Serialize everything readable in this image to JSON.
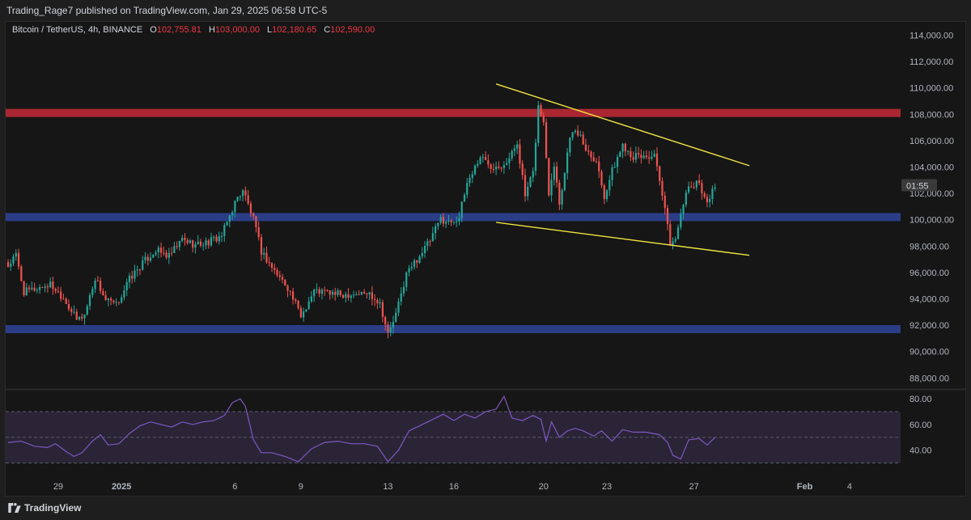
{
  "header": {
    "publisher": "Trading_Rage7 published on TradingView.com, Jan 29, 2025 06:58 UTC-5"
  },
  "legend": {
    "symbol": "Bitcoin / TetherUS, 4h, BINANCE",
    "open_label": "O",
    "open": "102,755.81",
    "high_label": "H",
    "high": "103,000.00",
    "low_label": "L",
    "low": "102,180.65",
    "close_label": "C",
    "close": "102,590.00"
  },
  "footer": {
    "brand": "TradingView",
    "logo_icon": "tradingview-logo-icon"
  },
  "colors": {
    "up": "#26a69a",
    "down": "#ef5350",
    "resistance": "#b22833",
    "support": "#2b3f8c",
    "trendline": "#f0e442",
    "rsi": "#7e57c2",
    "rsi_band": "#2a2436",
    "text": "#b2b5be"
  },
  "chart_data": [
    {
      "type": "candlestick",
      "title": "Bitcoin / TetherUS, 4h, BINANCE",
      "timeframe": "4h",
      "x_ticks": [
        {
          "label": "29",
          "bar": 19
        },
        {
          "label": "2025",
          "bar": 43
        },
        {
          "label": "6",
          "bar": 86
        },
        {
          "label": "9",
          "bar": 111
        },
        {
          "label": "13",
          "bar": 144
        },
        {
          "label": "16",
          "bar": 169
        },
        {
          "label": "20",
          "bar": 203
        },
        {
          "label": "23",
          "bar": 227
        },
        {
          "label": "27",
          "bar": 260
        },
        {
          "label": "Feb",
          "bar": 302
        },
        {
          "label": "4",
          "bar": 319
        }
      ],
      "y_ticks": [
        "114,000.00",
        "112,000.00",
        "110,000.00",
        "108,000.00",
        "106,000.00",
        "104,000.00",
        "102,000.00",
        "100,000.00",
        "98,000.00",
        "96,000.00",
        "94,000.00",
        "92,000.00",
        "90,000.00",
        "88,000.00"
      ],
      "y_tick_values": [
        114000,
        112000,
        110000,
        108000,
        106000,
        104000,
        102000,
        100000,
        98000,
        96000,
        94000,
        92000,
        90000,
        88000
      ],
      "ylim": [
        87000,
        115000
      ],
      "price_tag": {
        "value": 102590,
        "text": "01:55"
      },
      "horizontal_zones": [
        {
          "role": "resistance",
          "value": 108100
        },
        {
          "role": "support",
          "value": 100200
        },
        {
          "role": "support",
          "value": 91700
        }
      ],
      "trendlines": [
        {
          "from": {
            "bar": 185,
            "price": 110300
          },
          "to": {
            "bar": 281,
            "price": 104100
          }
        },
        {
          "from": {
            "bar": 185,
            "price": 99800
          },
          "to": {
            "bar": 281,
            "price": 97300
          }
        }
      ],
      "anchors": [
        [
          0,
          96500
        ],
        [
          3,
          97300
        ],
        [
          6,
          94500
        ],
        [
          11,
          94800
        ],
        [
          16,
          95100
        ],
        [
          21,
          94100
        ],
        [
          26,
          92400
        ],
        [
          29,
          92800
        ],
        [
          33,
          95600
        ],
        [
          37,
          93900
        ],
        [
          41,
          93500
        ],
        [
          46,
          95500
        ],
        [
          51,
          96700
        ],
        [
          56,
          97700
        ],
        [
          61,
          97200
        ],
        [
          66,
          98500
        ],
        [
          71,
          98100
        ],
        [
          76,
          98300
        ],
        [
          81,
          98800
        ],
        [
          86,
          101300
        ],
        [
          89,
          102300
        ],
        [
          93,
          100000
        ],
        [
          96,
          97600
        ],
        [
          101,
          96100
        ],
        [
          106,
          94900
        ],
        [
          111,
          92700
        ],
        [
          116,
          94600
        ],
        [
          121,
          94500
        ],
        [
          126,
          94300
        ],
        [
          131,
          94400
        ],
        [
          137,
          94400
        ],
        [
          141,
          93700
        ],
        [
          144,
          91300
        ],
        [
          147,
          92800
        ],
        [
          151,
          95900
        ],
        [
          156,
          97300
        ],
        [
          160,
          98400
        ],
        [
          164,
          100100
        ],
        [
          167,
          99800
        ],
        [
          171,
          100200
        ],
        [
          174,
          102800
        ],
        [
          179,
          104800
        ],
        [
          183,
          104100
        ],
        [
          187,
          104200
        ],
        [
          190,
          104600
        ],
        [
          193,
          105900
        ],
        [
          196,
          101800
        ],
        [
          199,
          103500
        ],
        [
          201,
          108600
        ],
        [
          203,
          107300
        ],
        [
          205,
          102100
        ],
        [
          207,
          104300
        ],
        [
          209,
          101300
        ],
        [
          211,
          103600
        ],
        [
          213,
          106500
        ],
        [
          216,
          106600
        ],
        [
          219,
          105400
        ],
        [
          223,
          104500
        ],
        [
          226,
          101800
        ],
        [
          229,
          103700
        ],
        [
          233,
          105700
        ],
        [
          237,
          104800
        ],
        [
          241,
          104800
        ],
        [
          245,
          104800
        ],
        [
          248,
          101800
        ],
        [
          251,
          98300
        ],
        [
          253,
          98400
        ],
        [
          255,
          100700
        ],
        [
          258,
          102400
        ],
        [
          262,
          102800
        ],
        [
          265,
          101300
        ],
        [
          268,
          102590
        ]
      ],
      "notes": "Candles are generated by interpolating between anchor closes (bar index, price)."
    },
    {
      "type": "line",
      "title": "",
      "y_ticks": [
        "80.00",
        "60.00",
        "40.00"
      ],
      "y_tick_values": [
        80,
        60,
        40
      ],
      "ylim": [
        30,
        83
      ],
      "band": [
        30,
        70
      ],
      "midline": 50,
      "series": [
        {
          "values": [
            [
              0,
              46
            ],
            [
              5,
              47
            ],
            [
              10,
              43
            ],
            [
              15,
              42
            ],
            [
              18,
              45
            ],
            [
              22,
              39
            ],
            [
              25,
              35
            ],
            [
              28,
              38
            ],
            [
              32,
              47
            ],
            [
              35,
              52
            ],
            [
              38,
              44
            ],
            [
              42,
              45
            ],
            [
              46,
              53
            ],
            [
              50,
              59
            ],
            [
              54,
              62
            ],
            [
              58,
              60
            ],
            [
              62,
              58
            ],
            [
              66,
              62
            ],
            [
              70,
              60
            ],
            [
              74,
              62
            ],
            [
              78,
              63
            ],
            [
              82,
              67
            ],
            [
              85,
              77
            ],
            [
              88,
              80
            ],
            [
              90,
              74
            ],
            [
              93,
              48
            ],
            [
              96,
              38
            ],
            [
              100,
              38
            ],
            [
              105,
              35
            ],
            [
              110,
              31
            ],
            [
              115,
              41
            ],
            [
              120,
              46
            ],
            [
              125,
              47
            ],
            [
              130,
              45
            ],
            [
              135,
              45
            ],
            [
              140,
              43
            ],
            [
              144,
              31
            ],
            [
              148,
              40
            ],
            [
              152,
              55
            ],
            [
              157,
              60
            ],
            [
              161,
              64
            ],
            [
              165,
              68
            ],
            [
              169,
              63
            ],
            [
              173,
              68
            ],
            [
              177,
              65
            ],
            [
              181,
              70
            ],
            [
              185,
              72
            ],
            [
              188,
              82
            ],
            [
              191,
              65
            ],
            [
              195,
              63
            ],
            [
              199,
              67
            ],
            [
              202,
              64
            ],
            [
              204,
              47
            ],
            [
              206,
              62
            ],
            [
              209,
              50
            ],
            [
              212,
              55
            ],
            [
              215,
              57
            ],
            [
              218,
              55
            ],
            [
              222,
              51
            ],
            [
              225,
              55
            ],
            [
              229,
              47
            ],
            [
              233,
              56
            ],
            [
              237,
              54
            ],
            [
              242,
              54
            ],
            [
              247,
              52
            ],
            [
              250,
              46
            ],
            [
              252,
              36
            ],
            [
              255,
              33
            ],
            [
              258,
              48
            ],
            [
              262,
              49
            ],
            [
              265,
              44
            ],
            [
              268,
              50
            ]
          ]
        }
      ]
    }
  ]
}
